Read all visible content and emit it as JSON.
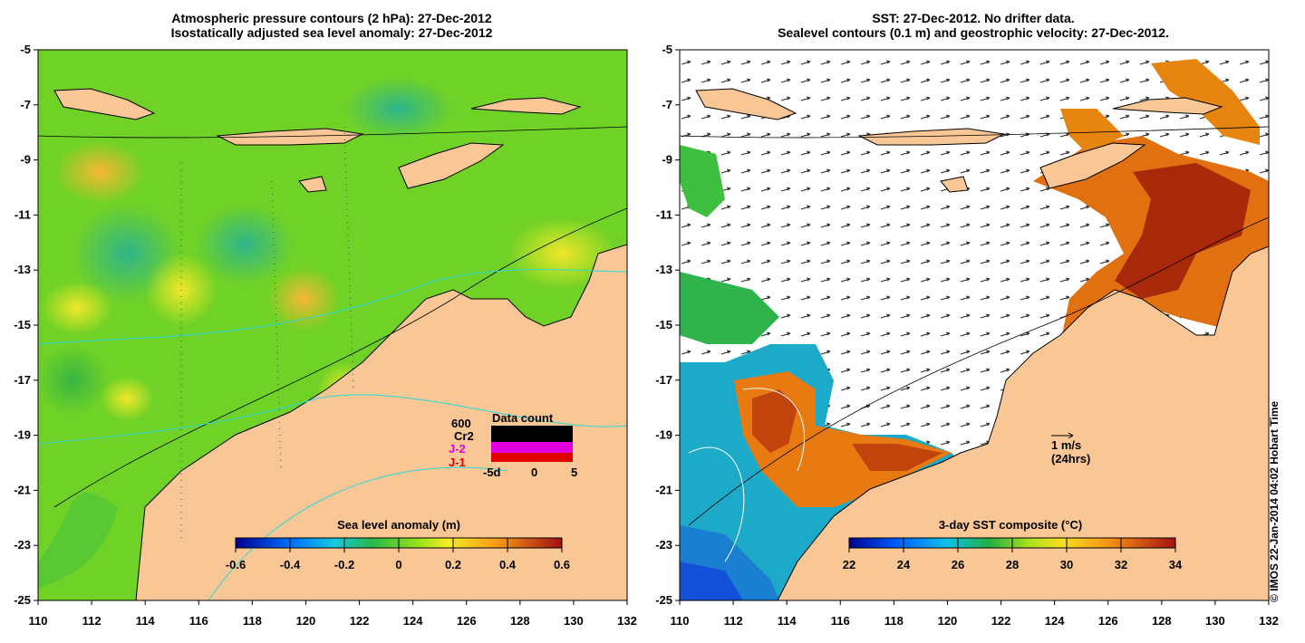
{
  "left_panel": {
    "title_line1": "Atmospheric pressure contours (2 hPa): 27-Dec-2012",
    "title_line2": "Isostatically adjusted sea level anomaly: 27-Dec-2012",
    "colorbar_label": "Sea level anomaly (m)",
    "colorbar_ticks": [
      "-0.6",
      "-0.4",
      "-0.2",
      "0",
      "0.2",
      "0.4",
      "0.6"
    ],
    "data_count": {
      "title": "Data count",
      "scale_label": "600",
      "satellites": [
        "Cr2",
        "J-2",
        "J-1"
      ],
      "axis_ticks": [
        "-5d",
        "0",
        "5"
      ]
    }
  },
  "right_panel": {
    "title_line1": "SST: 27-Dec-2012. No drifter data.",
    "title_line2": "Sealevel contours (0.1 m) and geostrophic velocity: 27-Dec-2012.",
    "colorbar_label": "3-day SST composite (°C)",
    "colorbar_ticks": [
      "22",
      "24",
      "26",
      "28",
      "30",
      "32",
      "34"
    ],
    "velocity_legend": {
      "value": "1 m/s",
      "period": "(24hrs)"
    }
  },
  "axes": {
    "lat_ticks": [
      "-5",
      "-7",
      "-9",
      "-11",
      "-13",
      "-15",
      "-17",
      "-19",
      "-21",
      "-23",
      "-25"
    ],
    "lon_ticks": [
      "110",
      "112",
      "114",
      "116",
      "118",
      "120",
      "122",
      "124",
      "126",
      "128",
      "130",
      "132"
    ]
  },
  "credit": "© IMOS 22-Jan-2014 04:02 Hobart Time",
  "colors": {
    "land": "#f9c796",
    "ocean_base": "#70d226",
    "sst_warm": "#b83308"
  }
}
